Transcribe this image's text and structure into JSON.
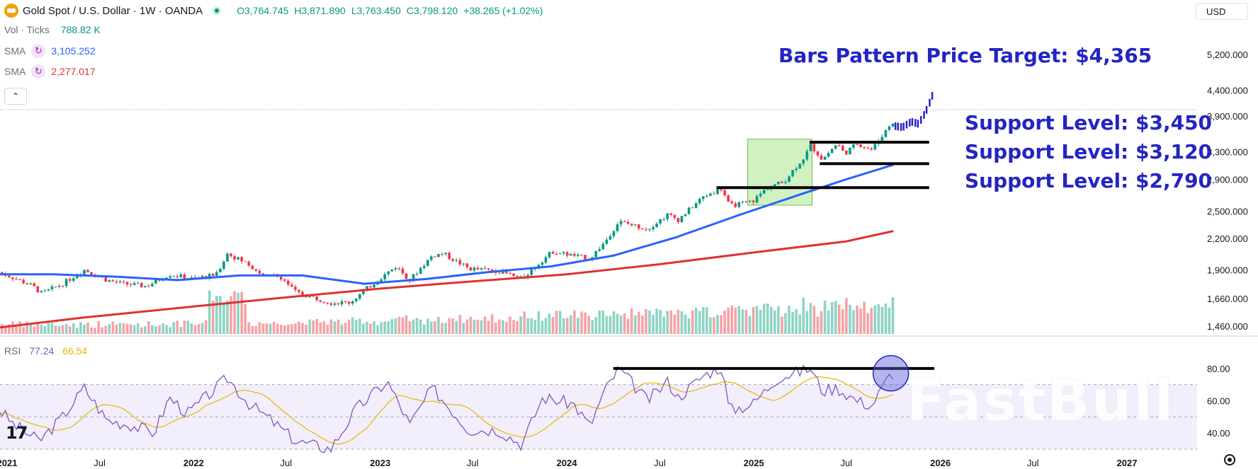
{
  "header": {
    "symbol": "Gold Spot / U.S. Dollar · 1W · OANDA",
    "open": "O3,764.745",
    "high": "H3,871.890",
    "low": "L3,763.450",
    "close": "C3,798.120",
    "change": "+38.265 (+1.02%)"
  },
  "indicators": {
    "volume": {
      "name": "Vol · Ticks",
      "value": "788.82 K",
      "color": "#089981"
    },
    "sma_fast": {
      "name": "SMA",
      "value": "3,105.252",
      "color": "#2962ff"
    },
    "sma_slow": {
      "name": "SMA",
      "value": "2,277.017",
      "color": "#e03131"
    },
    "collapse_icon": "chevron-up-icon"
  },
  "currency": "USD",
  "rsi": {
    "name": "RSI",
    "value": "77.24",
    "ma_value": "66.54"
  },
  "annotations": {
    "target": "Bars Pattern Price Target: $4,365",
    "support1": "Support Level: $3,450",
    "support2": "Support Level: $3,120",
    "support3": "Support Level: $2,790"
  },
  "logo": "17",
  "watermark": "FastBull",
  "colors": {
    "up": "#089981",
    "down": "#f23645",
    "projection": "#2424c4",
    "box": "#9be07a",
    "rsi": "#7e57c2",
    "rsi_ma": "#e6b800"
  },
  "chart_data": {
    "type": "candlestick",
    "title": "Gold Spot / U.S. Dollar",
    "scale": "log",
    "y_ticks": [
      "5,200.000",
      "4,400.000",
      "3,900.000",
      "3,300.000",
      "2,900.000",
      "2,500.000",
      "2,200.000",
      "1,900.000",
      "1,660.000",
      "1,460.000"
    ],
    "y_tick_values": [
      5200,
      4400,
      3900,
      3300,
      2900,
      2500,
      2200,
      1900,
      1660,
      1460
    ],
    "x_ticks": [
      "2021",
      "Jul",
      "2022",
      "Jul",
      "2023",
      "Jul",
      "2024",
      "Jul",
      "2025",
      "Jul",
      "2026",
      "Jul",
      "2027"
    ],
    "x_tick_dates": [
      "2021-01-01",
      "2021-07-01",
      "2022-01-01",
      "2022-07-01",
      "2023-01-01",
      "2023-07-01",
      "2024-01-01",
      "2024-07-01",
      "2025-01-01",
      "2025-07-01",
      "2026-01-01",
      "2026-07-01",
      "2027-01-01"
    ],
    "price_path": [
      [
        "2020-12-15",
        1880
      ],
      [
        "2021-01-08",
        1840
      ],
      [
        "2021-02-20",
        1760
      ],
      [
        "2021-03-10",
        1700
      ],
      [
        "2021-04-20",
        1780
      ],
      [
        "2021-06-01",
        1900
      ],
      [
        "2021-07-15",
        1810
      ],
      [
        "2021-08-15",
        1780
      ],
      [
        "2021-10-01",
        1760
      ],
      [
        "2021-11-15",
        1860
      ],
      [
        "2021-12-31",
        1820
      ],
      [
        "2022-02-15",
        1860
      ],
      [
        "2022-03-08",
        2050
      ],
      [
        "2022-04-18",
        1950
      ],
      [
        "2022-05-20",
        1840
      ],
      [
        "2022-06-20",
        1840
      ],
      [
        "2022-07-20",
        1710
      ],
      [
        "2022-09-26",
        1630
      ],
      [
        "2022-11-03",
        1630
      ],
      [
        "2022-12-30",
        1820
      ],
      [
        "2023-02-01",
        1930
      ],
      [
        "2023-02-28",
        1810
      ],
      [
        "2023-04-13",
        2030
      ],
      [
        "2023-05-04",
        2050
      ],
      [
        "2023-06-23",
        1910
      ],
      [
        "2023-08-20",
        1890
      ],
      [
        "2023-10-05",
        1820
      ],
      [
        "2023-12-04",
        2070
      ],
      [
        "2024-01-15",
        2030
      ],
      [
        "2024-02-15",
        2000
      ],
      [
        "2024-03-15",
        2160
      ],
      [
        "2024-04-12",
        2380
      ],
      [
        "2024-06-07",
        2300
      ],
      [
        "2024-07-17",
        2460
      ],
      [
        "2024-08-06",
        2400
      ],
      [
        "2024-09-26",
        2680
      ],
      [
        "2024-10-30",
        2780
      ],
      [
        "2024-11-14",
        2560
      ],
      [
        "2024-12-30",
        2620
      ],
      [
        "2025-01-31",
        2810
      ],
      [
        "2025-02-28",
        2860
      ],
      [
        "2025-04-11",
        3230
      ],
      [
        "2025-04-22",
        3400
      ],
      [
        "2025-05-15",
        3180
      ],
      [
        "2025-06-13",
        3430
      ],
      [
        "2025-06-27",
        3270
      ],
      [
        "2025-07-22",
        3430
      ],
      [
        "2025-08-20",
        3330
      ],
      [
        "2025-09-26",
        3760
      ],
      [
        "2025-10-01",
        3798
      ]
    ],
    "projection_path": [
      [
        "2025-10-05",
        3720
      ],
      [
        "2025-10-20",
        3700
      ],
      [
        "2025-11-05",
        3800
      ],
      [
        "2025-11-20",
        3760
      ],
      [
        "2025-12-05",
        4000
      ],
      [
        "2025-12-20",
        4365
      ]
    ],
    "sma_fast": [
      [
        "2020-12-15",
        1860
      ],
      [
        "2021-04-01",
        1860
      ],
      [
        "2021-08-01",
        1840
      ],
      [
        "2021-12-01",
        1810
      ],
      [
        "2022-04-01",
        1850
      ],
      [
        "2022-08-01",
        1850
      ],
      [
        "2022-12-01",
        1780
      ],
      [
        "2023-04-01",
        1820
      ],
      [
        "2023-08-01",
        1880
      ],
      [
        "2023-12-01",
        1930
      ],
      [
        "2024-04-01",
        2030
      ],
      [
        "2024-08-01",
        2210
      ],
      [
        "2024-12-01",
        2450
      ],
      [
        "2025-04-01",
        2700
      ],
      [
        "2025-07-01",
        2900
      ],
      [
        "2025-10-01",
        3105
      ]
    ],
    "sma_slow": [
      [
        "2020-12-15",
        1450
      ],
      [
        "2021-06-01",
        1520
      ],
      [
        "2022-01-01",
        1600
      ],
      [
        "2022-07-01",
        1670
      ],
      [
        "2023-01-01",
        1740
      ],
      [
        "2023-07-01",
        1800
      ],
      [
        "2024-01-01",
        1860
      ],
      [
        "2024-07-01",
        1950
      ],
      [
        "2025-01-01",
        2060
      ],
      [
        "2025-07-01",
        2170
      ],
      [
        "2025-10-01",
        2277
      ]
    ],
    "support_levels": [
      3450,
      3120,
      2790
    ],
    "price_target": 4365,
    "highlight_box": {
      "start": "2024-12-20",
      "end": "2025-04-25",
      "low": 2570,
      "high": 3500
    },
    "volume_unit": "K",
    "rsi_range": [
      30,
      90
    ],
    "rsi_ticks": [
      80,
      60,
      40
    ],
    "rsi_path": [
      [
        "2020-12-15",
        55
      ],
      [
        "2021-01-15",
        45
      ],
      [
        "2021-03-05",
        35
      ],
      [
        "2021-04-20",
        50
      ],
      [
        "2021-06-01",
        68
      ],
      [
        "2021-07-15",
        48
      ],
      [
        "2021-09-01",
        45
      ],
      [
        "2021-10-15",
        40
      ],
      [
        "2021-11-15",
        62
      ],
      [
        "2021-12-20",
        52
      ],
      [
        "2022-03-08",
        74
      ],
      [
        "2022-04-20",
        58
      ],
      [
        "2022-06-01",
        48
      ],
      [
        "2022-07-20",
        35
      ],
      [
        "2022-09-26",
        30
      ],
      [
        "2022-11-15",
        55
      ],
      [
        "2023-01-15",
        72
      ],
      [
        "2023-02-28",
        45
      ],
      [
        "2023-04-13",
        68
      ],
      [
        "2023-06-23",
        42
      ],
      [
        "2023-08-20",
        42
      ],
      [
        "2023-10-05",
        33
      ],
      [
        "2023-11-15",
        62
      ],
      [
        "2024-01-15",
        58
      ],
      [
        "2024-02-15",
        44
      ],
      [
        "2024-03-15",
        66
      ],
      [
        "2024-04-12",
        80
      ],
      [
        "2024-06-07",
        60
      ],
      [
        "2024-07-17",
        72
      ],
      [
        "2024-08-06",
        62
      ],
      [
        "2024-09-26",
        76
      ],
      [
        "2024-10-30",
        81
      ],
      [
        "2024-11-14",
        54
      ],
      [
        "2024-12-30",
        58
      ],
      [
        "2025-02-15",
        74
      ],
      [
        "2025-04-22",
        80
      ],
      [
        "2025-05-15",
        66
      ],
      [
        "2025-06-13",
        68
      ],
      [
        "2025-07-22",
        60
      ],
      [
        "2025-08-20",
        57
      ],
      [
        "2025-09-26",
        77
      ],
      [
        "2025-10-01",
        77.24
      ]
    ],
    "rsi_resistance": 80
  }
}
